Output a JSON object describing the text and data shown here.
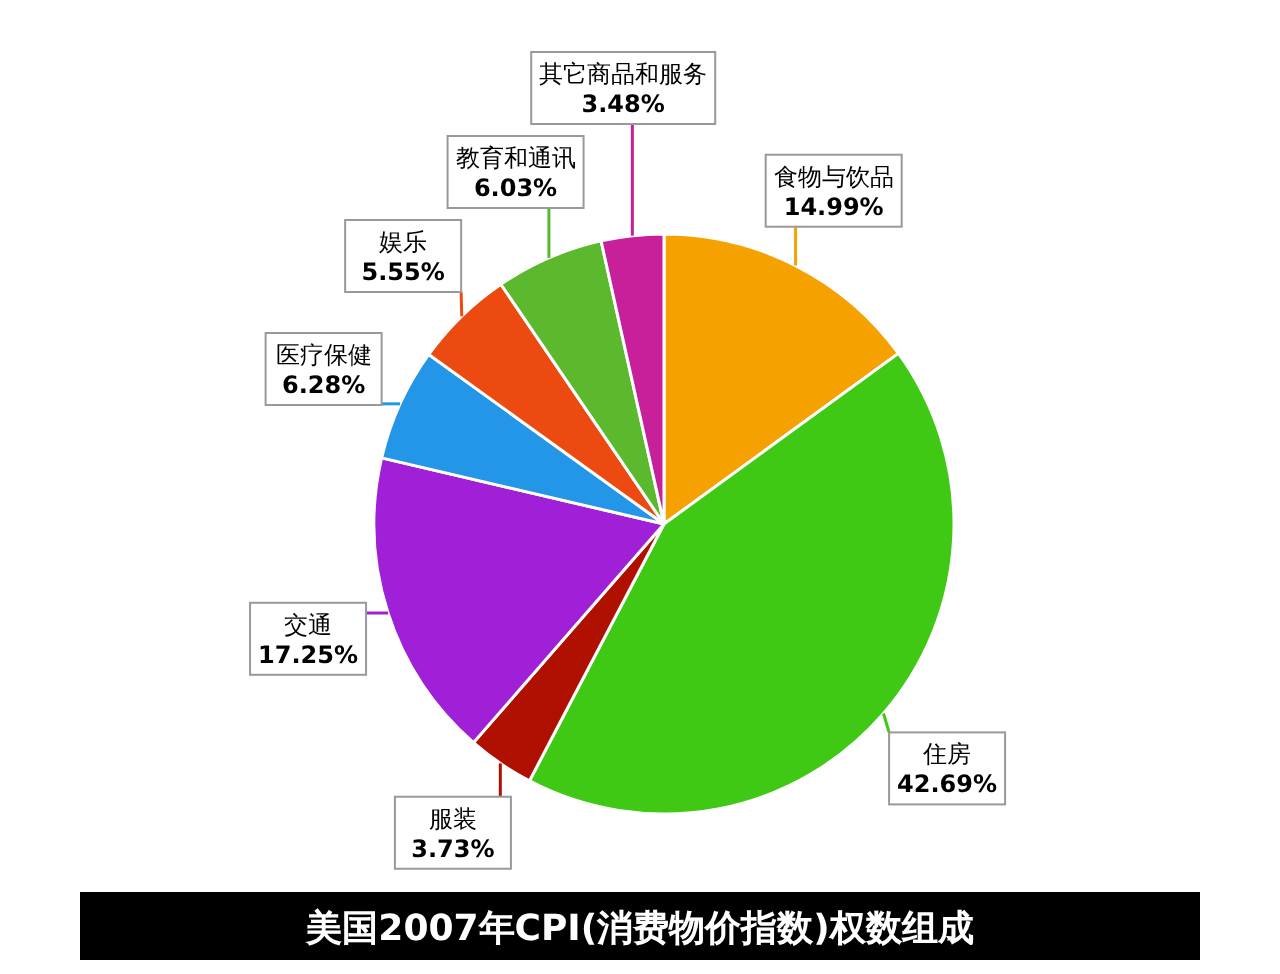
{
  "chart_data": {
    "type": "pie",
    "title": "美国2007年CPI(消费物价指数)权数组成",
    "categories": [
      "食物与饮品",
      "住房",
      "服装",
      "交通",
      "医疗保健",
      "娱乐",
      "教育和通讯",
      "其它商品和服务"
    ],
    "values": [
      14.99,
      42.69,
      3.73,
      17.25,
      6.28,
      5.55,
      6.03,
      3.48
    ],
    "value_labels": [
      "14.99%",
      "42.69%",
      "3.73%",
      "17.25%",
      "6.28%",
      "5.55%",
      "6.03%",
      "3.48%"
    ],
    "colors": [
      "#f5a200",
      "#3fc814",
      "#b01000",
      "#a020d8",
      "#2496e8",
      "#ec4a10",
      "#5cb82c",
      "#c8209a"
    ]
  }
}
